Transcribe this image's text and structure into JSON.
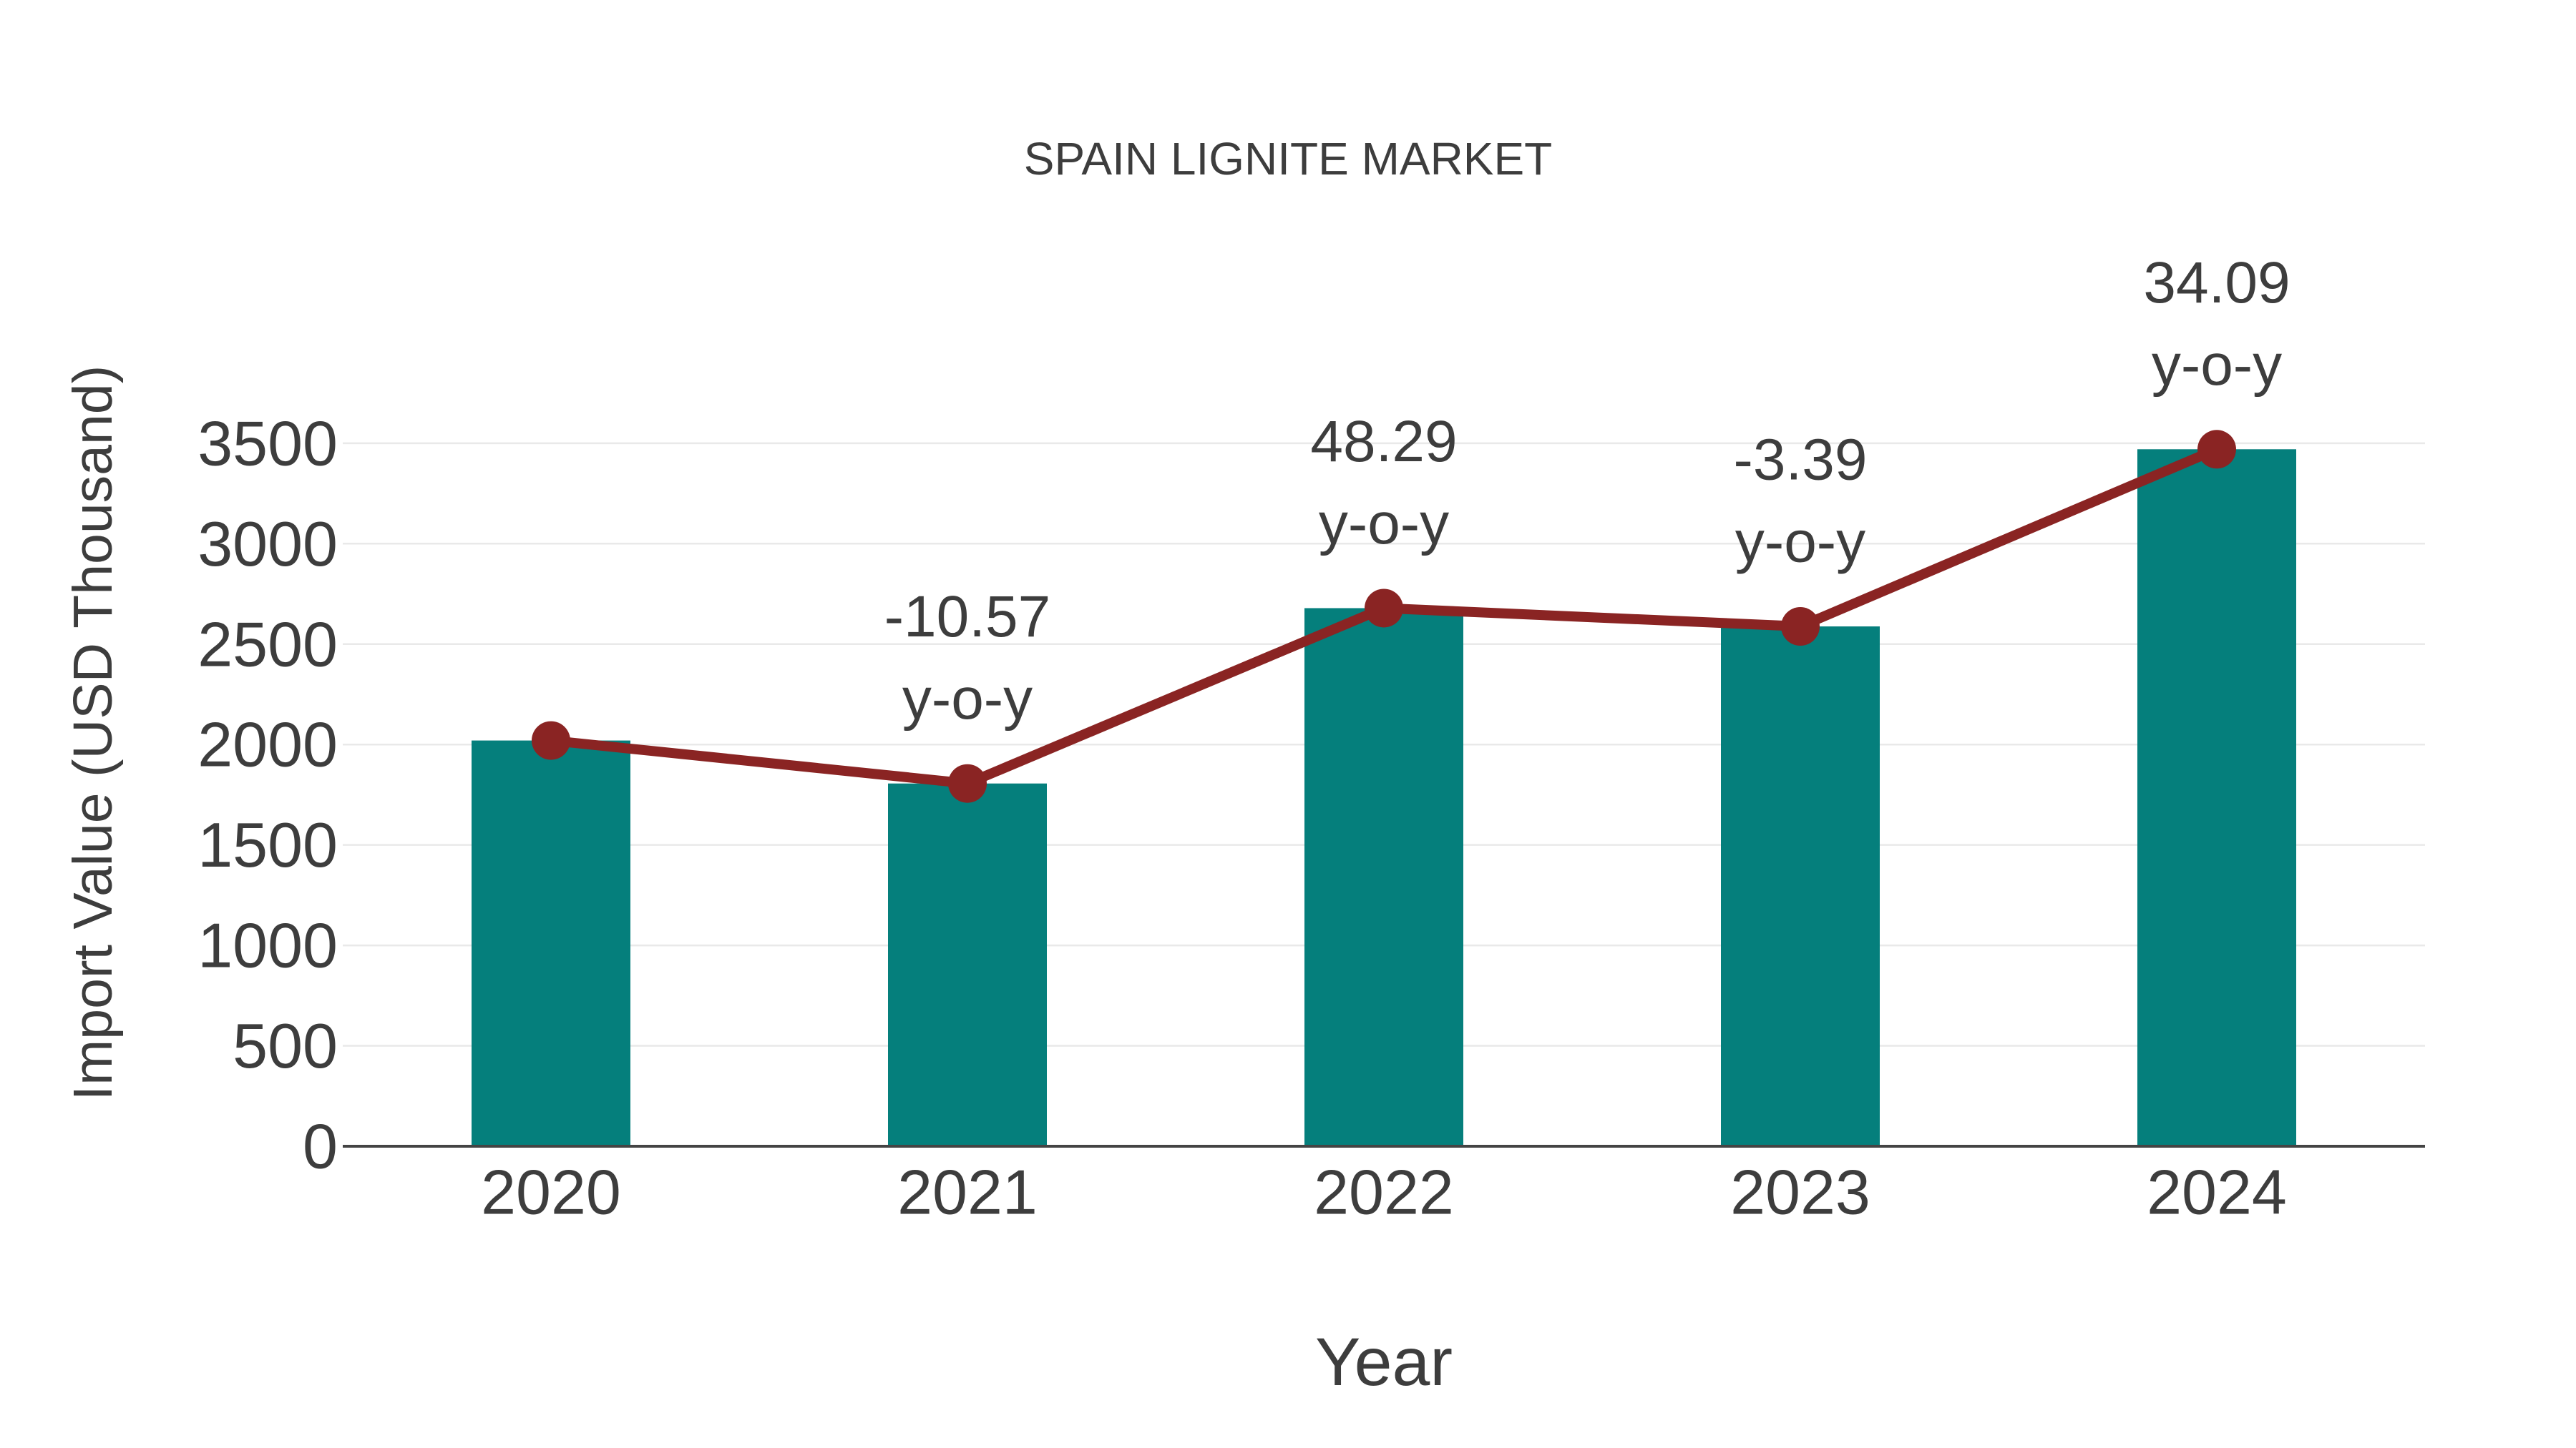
{
  "chart_data": {
    "type": "bar",
    "subtype": "bar with line overlay",
    "title": "SPAIN LIGNITE MARKET",
    "xlabel": "Year",
    "ylabel": "Import Value (USD Thousand)",
    "categories": [
      "2020",
      "2021",
      "2022",
      "2023",
      "2024"
    ],
    "series": [
      {
        "name": "Import Value",
        "type": "bar",
        "values": [
          2020,
          1806,
          2679,
          2588,
          3470
        ],
        "color": "#057f7c"
      },
      {
        "name": "y-o-y change",
        "type": "line",
        "values": [
          2020,
          1806,
          2679,
          2588,
          3470
        ],
        "color": "#8a2423",
        "marker": "circle",
        "annotations": [
          "",
          "-10.57",
          "48.29",
          "-3.39",
          "34.09"
        ],
        "annotation_suffix": "y-o-y"
      }
    ],
    "ylim": [
      0,
      3500
    ],
    "yticks": [
      0,
      500,
      1000,
      1500,
      2000,
      2500,
      3000,
      3500
    ],
    "grid": "horizontal",
    "legend_position": "none",
    "colors": {
      "bar": "#057f7c",
      "line": "#8a2423",
      "text": "#3d3d3d",
      "grid": "#e9e9e9",
      "axis": "#444444",
      "background": "#ffffff"
    }
  }
}
